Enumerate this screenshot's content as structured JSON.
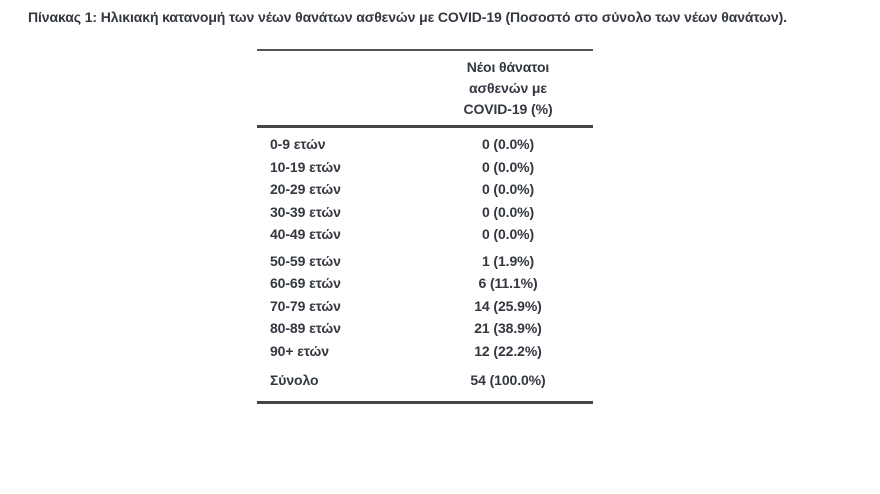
{
  "caption": "Πίνακας 1: Ηλικιακή κατανομή των νέων θανάτων ασθενών με COVID-19 (Ποσοστό στο σύνολο των νέων θανάτων).",
  "table": {
    "value_header": [
      "Νέοι θάνατοι",
      "ασθενών με",
      "COVID-19 (%)"
    ],
    "groups": [
      {
        "rows": [
          {
            "label": "0-9 ετών",
            "value": "0 (0.0%)"
          },
          {
            "label": "10-19 ετών",
            "value": "0 (0.0%)"
          },
          {
            "label": "20-29 ετών",
            "value": "0 (0.0%)"
          },
          {
            "label": "30-39 ετών",
            "value": "0 (0.0%)"
          },
          {
            "label": "40-49 ετών",
            "value": "0 (0.0%)"
          }
        ]
      },
      {
        "rows": [
          {
            "label": "50-59 ετών",
            "value": "1 (1.9%)"
          },
          {
            "label": "60-69 ετών",
            "value": "6 (11.1%)"
          },
          {
            "label": "70-79 ετών",
            "value": "14 (25.9%)"
          },
          {
            "label": "80-89 ετών",
            "value": "21 (38.9%)"
          },
          {
            "label": "90+ ετών",
            "value": "12 (22.2%)"
          }
        ]
      }
    ],
    "total": {
      "label": "Σύνολο",
      "value": "54 (100.0%)"
    }
  },
  "colors": {
    "text": "#333740",
    "rule": "#454545",
    "background": "#ffffff"
  }
}
